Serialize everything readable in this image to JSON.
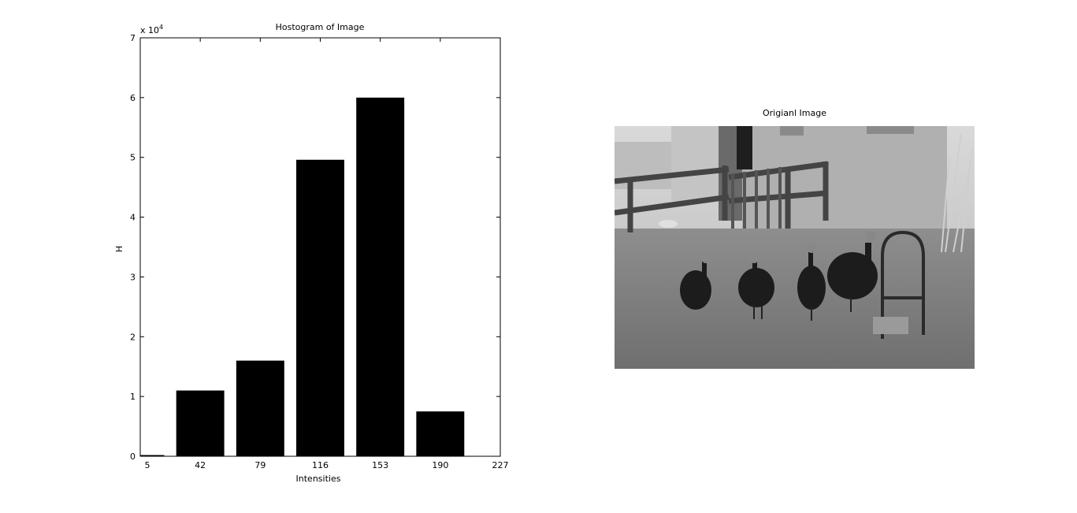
{
  "chart_data": {
    "type": "bar",
    "title": "Hostogram of Image",
    "xlabel": "Intensities",
    "ylabel": "H",
    "y_exponent_label": "x 10",
    "y_exponent_power": "4",
    "x_ticks": [
      "5",
      "42",
      "79",
      "116",
      "153",
      "190",
      "227"
    ],
    "xlim": [
      5,
      227
    ],
    "y_ticks": [
      "0",
      "1",
      "2",
      "3",
      "4",
      "5",
      "6",
      "7"
    ],
    "ylim": [
      0,
      70000
    ],
    "grid": false,
    "bar_color": "#000000",
    "bars": [
      {
        "x": 5,
        "value": 200
      },
      {
        "x": 42,
        "value": 11000
      },
      {
        "x": 79,
        "value": 16000
      },
      {
        "x": 116,
        "value": 49600
      },
      {
        "x": 153,
        "value": 60000
      },
      {
        "x": 190,
        "value": 7500
      }
    ]
  },
  "image_panel": {
    "title": "Origianl Image"
  }
}
